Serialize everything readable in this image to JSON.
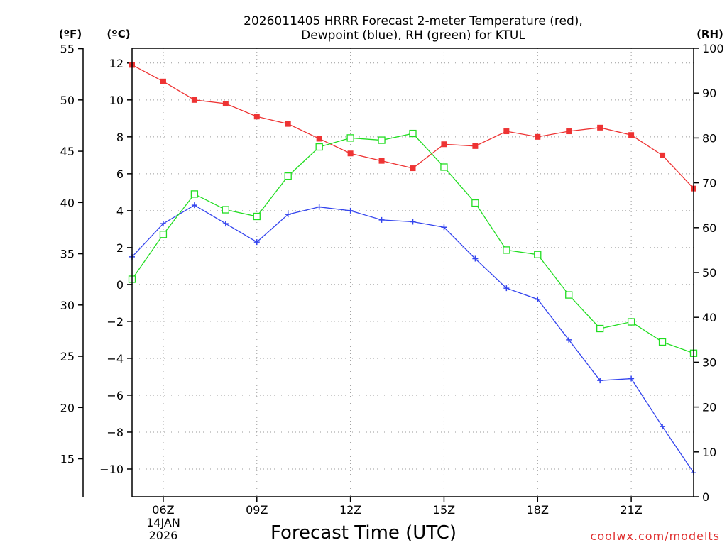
{
  "chart_data": {
    "type": "line",
    "title_line1": "2026011405 HRRR Forecast 2-meter Temperature (red),",
    "title_line2": "Dewpoint (blue), RH (green) for KTUL",
    "xlabel": "Forecast Time (UTC)",
    "credit": "coolwx.com/modelts",
    "units": {
      "left_outer": "(ºF)",
      "left_inner": "(ºC)",
      "right": "(RH)"
    },
    "x_hours": [
      5,
      6,
      7,
      8,
      9,
      10,
      11,
      12,
      13,
      14,
      15,
      16,
      17,
      18,
      19,
      20,
      21,
      22,
      23
    ],
    "xlim": [
      5,
      23
    ],
    "x_ticks": [
      {
        "hour": 6,
        "label": "06Z",
        "sub1": "14JAN",
        "sub2": "2026"
      },
      {
        "hour": 9,
        "label": "09Z"
      },
      {
        "hour": 12,
        "label": "12Z"
      },
      {
        "hour": 15,
        "label": "15Z"
      },
      {
        "hour": 18,
        "label": "18Z"
      },
      {
        "hour": 21,
        "label": "21Z"
      }
    ],
    "celsius_axis": {
      "ylim": [
        -11.5,
        12.8
      ],
      "ticks": [
        12,
        10,
        8,
        6,
        4,
        2,
        0,
        -2,
        -4,
        -6,
        -8,
        -10
      ],
      "tick_labels": [
        "12",
        "10",
        "8",
        "6",
        "4",
        "2",
        "0",
        "−2",
        "−4",
        "−6",
        "−8",
        "−10"
      ]
    },
    "fahrenheit_axis": {
      "ticks": [
        55,
        50,
        45,
        40,
        35,
        30,
        25,
        20,
        15
      ],
      "tick_labels": [
        "55",
        "50",
        "45",
        "40",
        "35",
        "30",
        "25",
        "20",
        "15"
      ]
    },
    "rh_axis": {
      "ylim": [
        0,
        100
      ],
      "ticks": [
        100,
        90,
        80,
        70,
        60,
        50,
        40,
        30,
        20,
        10,
        0
      ],
      "tick_labels": [
        "100",
        "90",
        "80",
        "70",
        "60",
        "50",
        "40",
        "30",
        "20",
        "10",
        "0"
      ]
    },
    "series": [
      {
        "name": "Temperature",
        "color": "#ee3333",
        "marker": "filled-square",
        "axis": "celsius",
        "values": [
          11.9,
          11.0,
          10.0,
          9.8,
          9.1,
          8.7,
          7.9,
          7.1,
          6.7,
          6.3,
          7.6,
          7.5,
          8.3,
          8.0,
          8.3,
          8.5,
          8.1,
          7.0,
          5.2
        ]
      },
      {
        "name": "Dewpoint",
        "color": "#3344ee",
        "marker": "plus",
        "axis": "celsius",
        "values": [
          1.5,
          3.3,
          4.3,
          3.3,
          2.3,
          3.8,
          4.2,
          4.0,
          3.5,
          3.4,
          3.1,
          1.4,
          -0.2,
          -0.8,
          -3.0,
          -5.2,
          -5.1,
          -7.7,
          -10.2
        ]
      },
      {
        "name": "RH",
        "color": "#22dd22",
        "marker": "open-square",
        "axis": "rh",
        "values": [
          48.5,
          58.5,
          67.5,
          64.0,
          62.5,
          71.5,
          78.0,
          80.0,
          79.5,
          81.0,
          73.5,
          65.5,
          55.0,
          54.0,
          45.0,
          37.5,
          39.0,
          34.5,
          32.0
        ]
      }
    ]
  }
}
